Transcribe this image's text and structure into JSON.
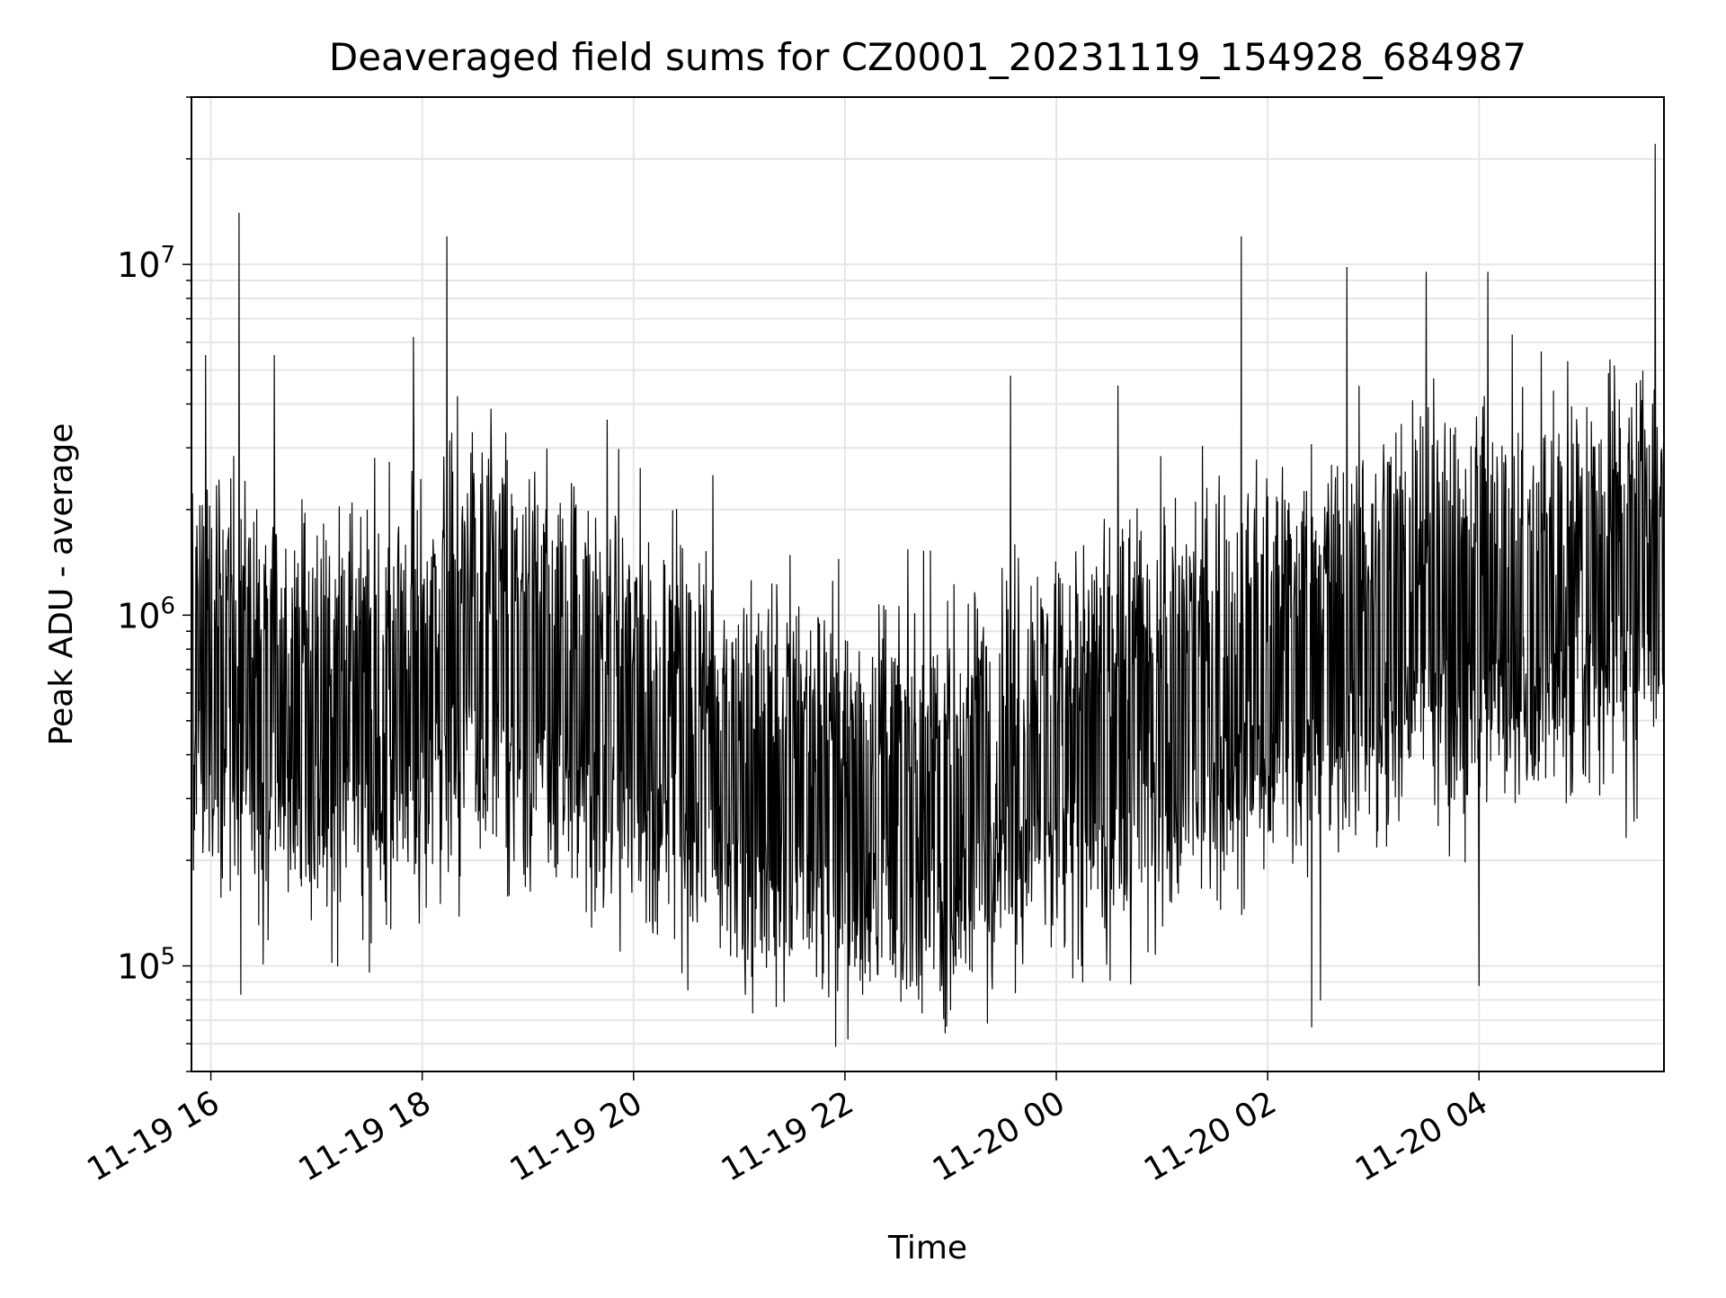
{
  "chart_data": {
    "type": "line",
    "title": "Deaveraged field sums for CZ0001_20231119_154928_684987",
    "xlabel": "Time",
    "ylabel": "Peak ADU - average",
    "x_scale": "time",
    "y_scale": "log",
    "xlim": [
      "2023-11-19 15:49",
      "2023-11-20 05:45"
    ],
    "ylim": [
      50000,
      30000000
    ],
    "grid": true,
    "legend": "none",
    "line_color": "#000000",
    "grid_color": "#e6e6e6",
    "x_ticks": [
      {
        "t": "2023-11-19 16:00",
        "label": "11-19 16"
      },
      {
        "t": "2023-11-19 18:00",
        "label": "11-19 18"
      },
      {
        "t": "2023-11-19 20:00",
        "label": "11-19 20"
      },
      {
        "t": "2023-11-19 22:00",
        "label": "11-19 22"
      },
      {
        "t": "2023-11-20 00:00",
        "label": "11-20 00"
      },
      {
        "t": "2023-11-20 02:00",
        "label": "11-20 02"
      },
      {
        "t": "2023-11-20 04:00",
        "label": "11-20 04"
      }
    ],
    "y_ticks": [
      {
        "value": 100000,
        "base": "10",
        "exp": "5"
      },
      {
        "value": 1000000,
        "base": "10",
        "exp": "6"
      },
      {
        "value": 10000000,
        "base": "10",
        "exp": "7"
      }
    ],
    "series": [
      {
        "trend": [
          {
            "t": "2023-11-19 15:49",
            "y": 800000
          },
          {
            "t": "2023-11-19 16:30",
            "y": 500000
          },
          {
            "t": "2023-11-19 17:30",
            "y": 480000
          },
          {
            "t": "2023-11-19 18:30",
            "y": 800000
          },
          {
            "t": "2023-11-19 19:30",
            "y": 600000
          },
          {
            "t": "2023-11-19 20:30",
            "y": 380000
          },
          {
            "t": "2023-11-19 21:30",
            "y": 300000
          },
          {
            "t": "2023-11-19 22:30",
            "y": 280000
          },
          {
            "t": "2023-11-19 23:30",
            "y": 320000
          },
          {
            "t": "2023-11-20 00:30",
            "y": 450000
          },
          {
            "t": "2023-11-20 01:30",
            "y": 600000
          },
          {
            "t": "2023-11-20 02:30",
            "y": 750000
          },
          {
            "t": "2023-11-20 03:30",
            "y": 1000000
          },
          {
            "t": "2023-11-20 04:30",
            "y": 1100000
          },
          {
            "t": "2023-11-20 05:45",
            "y": 1300000
          }
        ],
        "peaks": [
          {
            "t": "2023-11-19 15:57",
            "y": 5500000
          },
          {
            "t": "2023-11-19 16:16",
            "y": 14000000
          },
          {
            "t": "2023-11-19 16:36",
            "y": 5500000
          },
          {
            "t": "2023-11-19 17:33",
            "y": 2800000
          },
          {
            "t": "2023-11-19 17:55",
            "y": 6200000
          },
          {
            "t": "2023-11-19 18:14",
            "y": 12000000
          },
          {
            "t": "2023-11-19 18:20",
            "y": 4200000
          },
          {
            "t": "2023-11-19 19:45",
            "y": 3600000
          },
          {
            "t": "2023-11-19 20:45",
            "y": 2500000
          },
          {
            "t": "2023-11-19 23:34",
            "y": 4800000
          },
          {
            "t": "2023-11-20 00:35",
            "y": 4500000
          },
          {
            "t": "2023-11-20 01:45",
            "y": 12000000
          },
          {
            "t": "2023-11-20 02:45",
            "y": 9800000
          },
          {
            "t": "2023-11-20 03:30",
            "y": 9500000
          },
          {
            "t": "2023-11-20 04:05",
            "y": 9500000
          },
          {
            "t": "2023-11-20 05:40",
            "y": 22000000
          }
        ],
        "troughs": [
          {
            "t": "2023-11-19 16:17",
            "y": 83000
          },
          {
            "t": "2023-11-19 17:12",
            "y": 100000
          },
          {
            "t": "2023-11-19 17:30",
            "y": 96000
          },
          {
            "t": "2023-11-19 22:35",
            "y": 86000
          },
          {
            "t": "2023-11-19 22:55",
            "y": 88000
          },
          {
            "t": "2023-11-20 00:15",
            "y": 90000
          },
          {
            "t": "2023-11-20 02:25",
            "y": 67000
          },
          {
            "t": "2023-11-20 02:30",
            "y": 80000
          },
          {
            "t": "2023-11-20 04:00",
            "y": 88000
          }
        ],
        "noise": {
          "points": 3000,
          "typical_high": 3.0,
          "typical_low": 0.35
        }
      }
    ]
  }
}
